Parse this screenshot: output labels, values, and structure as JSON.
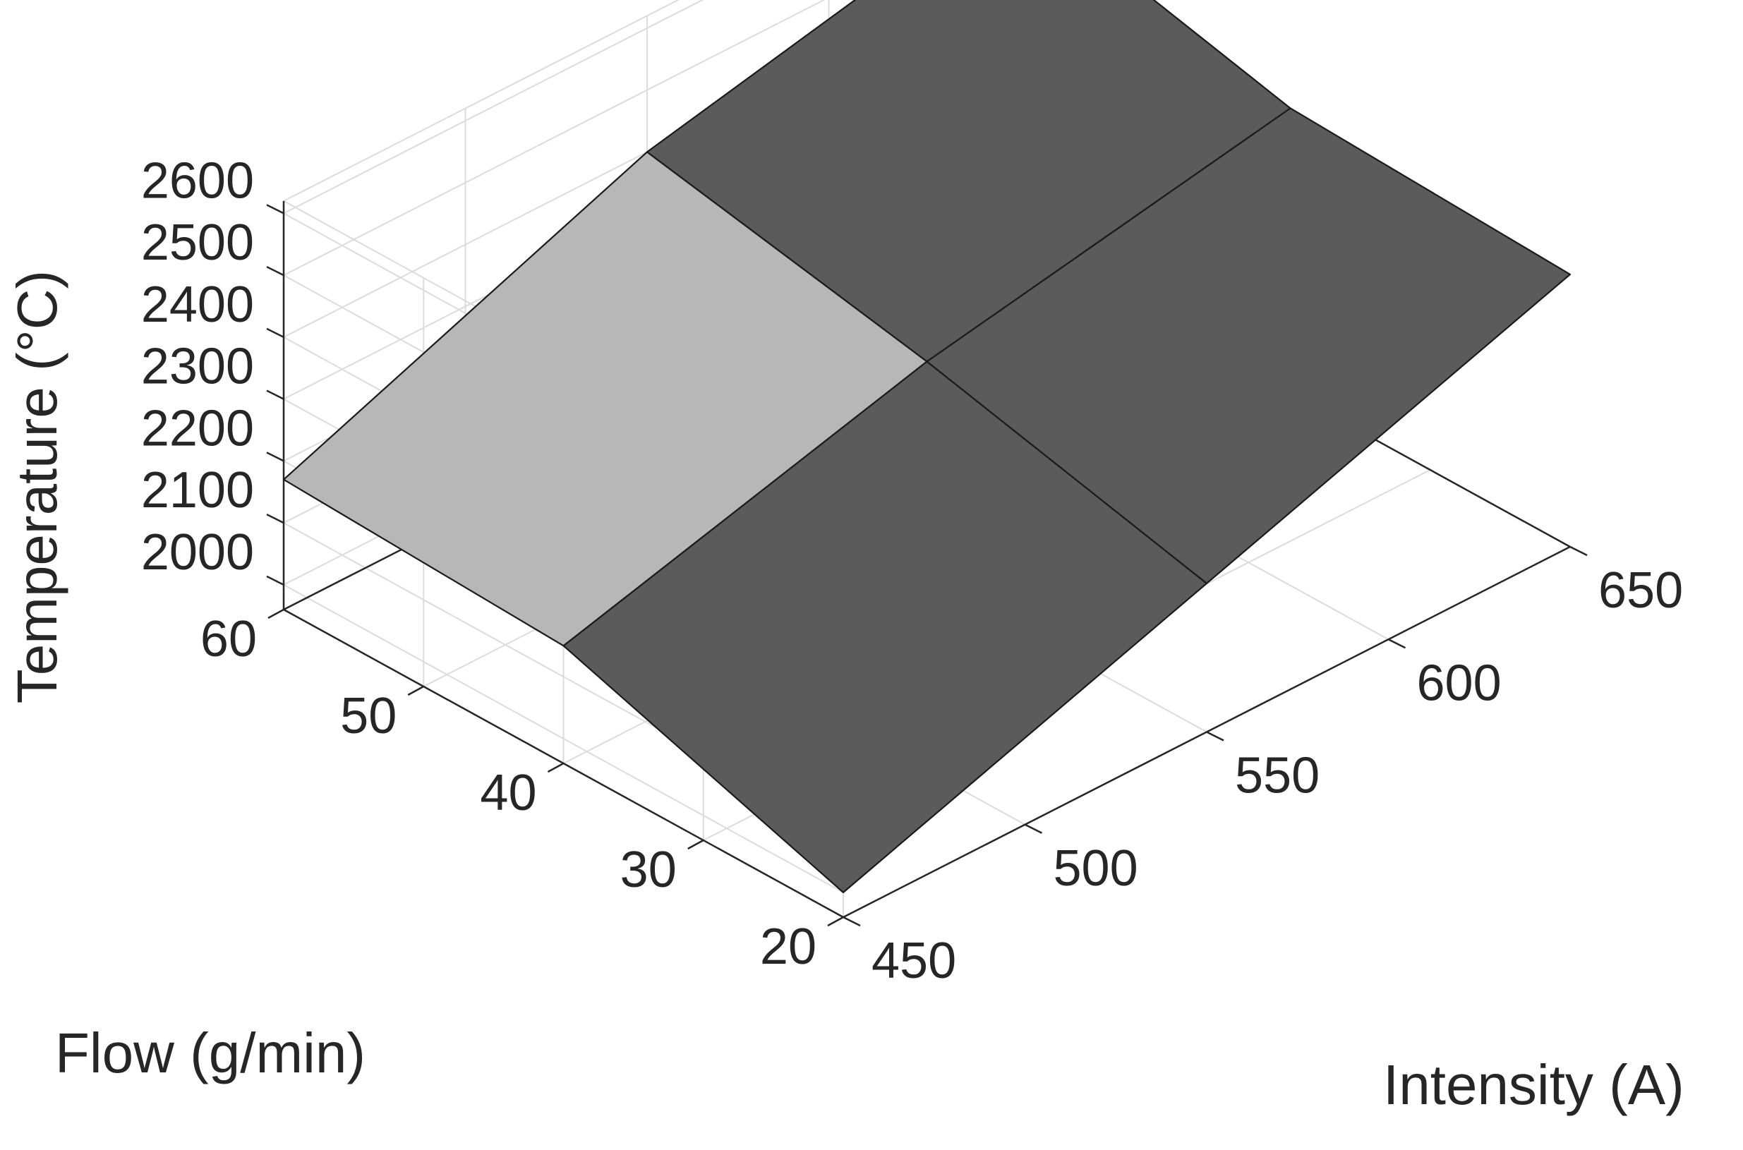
{
  "chart_data": {
    "type": "surface",
    "title": "",
    "xlabel": "Intensity (A)",
    "ylabel": "Flow (g/min)",
    "zlabel": "Temperature (°C)",
    "x_ticks": [
      450,
      500,
      550,
      600,
      650
    ],
    "y_ticks": [
      20,
      30,
      40,
      50,
      60
    ],
    "z_ticks": [
      2000,
      2100,
      2200,
      2300,
      2400,
      2500,
      2600
    ],
    "xlim": [
      450,
      650
    ],
    "ylim": [
      20,
      60
    ],
    "zlim": [
      1960,
      2620
    ],
    "grid": true,
    "colors": {
      "surface": "#5b5b5b",
      "surface_light": "#b7b7b7",
      "edge": "#1a1a1a",
      "grid": "#dcdcdc",
      "axis": "#262626"
    },
    "x": [
      450,
      550,
      650
    ],
    "y": [
      20,
      40,
      60
    ],
    "z": [
      [
        2000,
        2200,
        2400
      ],
      [
        2150,
        2310,
        2420
      ],
      [
        2170,
        2400,
        2530
      ]
    ],
    "z_order": "z[i][j]: i indexes y (Flow), j indexes x (Intensity)"
  }
}
